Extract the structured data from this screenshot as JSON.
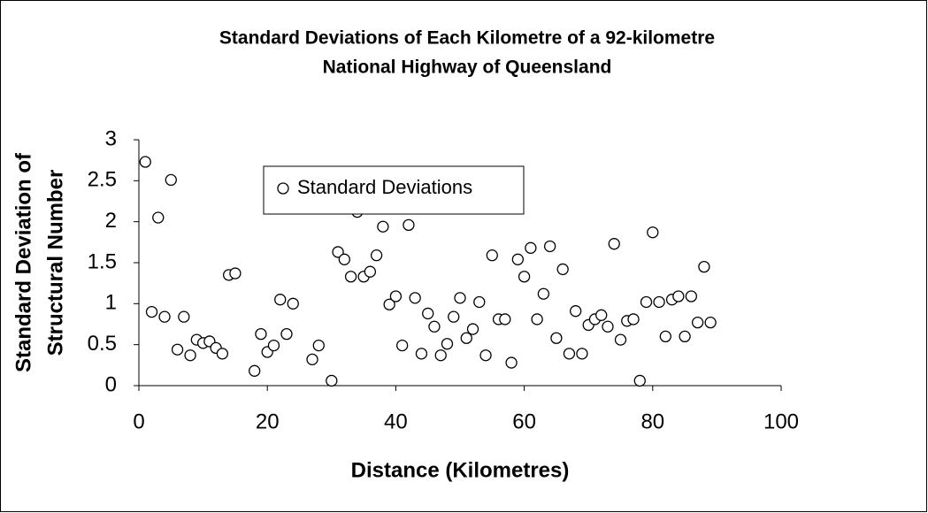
{
  "chart_data": {
    "type": "scatter",
    "title": [
      "Standard Deviations of Each Kilometre of a 92-kilometre",
      "National Highway of Queensland"
    ],
    "x_label": "Distance (Kilometres)",
    "y_label": [
      "Standard Deviation of",
      "Structural Number"
    ],
    "series": [
      {
        "name": "Standard Deviations",
        "color": "#000000",
        "x": [
          1,
          2,
          3,
          4,
          5,
          6,
          7,
          8,
          9,
          10,
          11,
          12,
          13,
          14,
          15,
          18,
          19,
          20,
          21,
          22,
          23,
          24,
          27,
          28,
          30,
          31,
          32,
          33,
          34,
          35,
          36,
          37,
          38,
          39,
          40,
          41,
          42,
          43,
          44,
          45,
          46,
          47,
          48,
          49,
          50,
          51,
          52,
          53,
          54,
          55,
          56,
          57,
          58,
          59,
          60,
          61,
          62,
          63,
          64,
          65,
          66,
          67,
          68,
          69,
          70,
          71,
          72,
          73,
          74,
          75,
          76,
          77,
          78,
          79,
          80,
          81,
          82,
          83,
          84,
          85,
          86,
          87,
          88,
          89
        ],
        "values": [
          2.73,
          0.9,
          2.05,
          0.84,
          2.51,
          0.44,
          0.84,
          0.37,
          0.56,
          0.52,
          0.54,
          0.46,
          0.39,
          1.35,
          1.37,
          0.18,
          0.63,
          0.41,
          0.49,
          1.05,
          0.63,
          1.0,
          0.32,
          0.49,
          0.06,
          1.63,
          1.54,
          1.33,
          2.12,
          1.33,
          1.39,
          1.59,
          1.94,
          0.99,
          1.09,
          0.49,
          1.96,
          1.07,
          0.39,
          0.88,
          0.72,
          0.37,
          0.51,
          0.84,
          1.07,
          0.58,
          0.69,
          1.02,
          0.37,
          1.59,
          0.81,
          0.81,
          0.28,
          1.54,
          1.33,
          1.68,
          0.81,
          1.12,
          1.7,
          0.58,
          1.42,
          0.39,
          0.91,
          0.39,
          0.74,
          0.81,
          0.86,
          0.72,
          1.73,
          0.56,
          0.79,
          0.81,
          0.06,
          1.02,
          1.87,
          1.02,
          0.6,
          1.05,
          1.09,
          0.6,
          1.09,
          0.77,
          1.45,
          0.77
        ]
      }
    ],
    "xlim": [
      0,
      100
    ],
    "xticks": [
      0,
      20,
      40,
      60,
      80,
      100
    ],
    "ylim": [
      0,
      3
    ],
    "yticks": [
      0,
      0.5,
      1,
      1.5,
      2,
      2.5,
      3
    ],
    "grid": false,
    "legend": "upper left"
  }
}
